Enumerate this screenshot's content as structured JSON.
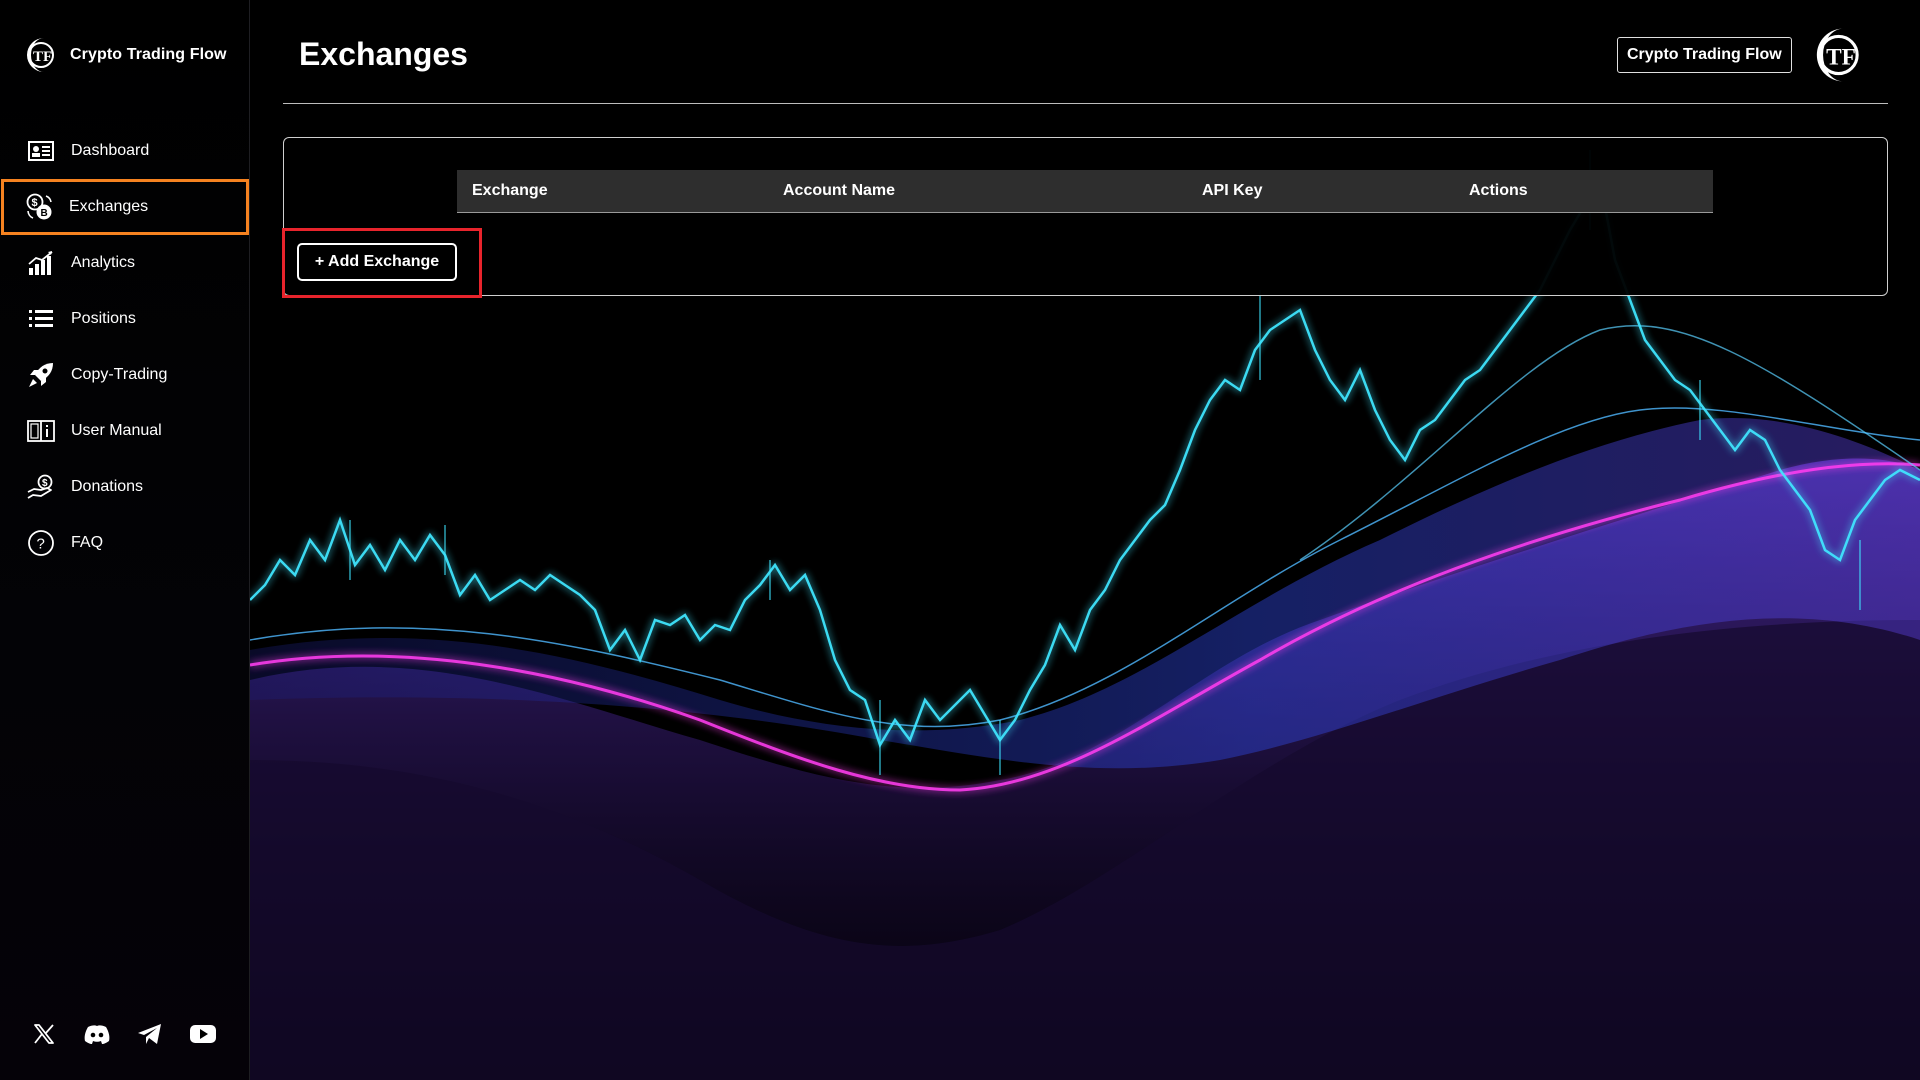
{
  "app": {
    "name": "Crypto Trading Flow"
  },
  "sidebar": {
    "items": [
      {
        "label": "Dashboard",
        "icon": "dashboard-icon"
      },
      {
        "label": "Exchanges",
        "icon": "exchange-coins-icon",
        "active": true
      },
      {
        "label": "Analytics",
        "icon": "analytics-icon"
      },
      {
        "label": "Positions",
        "icon": "list-icon"
      },
      {
        "label": "Copy-Trading",
        "icon": "rocket-icon"
      },
      {
        "label": "User Manual",
        "icon": "book-icon"
      },
      {
        "label": "Donations",
        "icon": "donation-icon"
      },
      {
        "label": "FAQ",
        "icon": "question-icon"
      }
    ],
    "socials": [
      "x-icon",
      "discord-icon",
      "telegram-icon",
      "youtube-icon"
    ]
  },
  "header": {
    "title": "Exchanges",
    "brand_button": "Crypto Trading Flow"
  },
  "table": {
    "columns": [
      "Exchange",
      "Account Name",
      "API Key",
      "Actions"
    ],
    "rows": []
  },
  "actions": {
    "add_exchange": "+ Add Exchange"
  },
  "colors": {
    "active_outline": "#f58220",
    "highlight_outline": "#e8242c",
    "chart_cyan": "#3fe6ff",
    "wave_blue": "#3a4cff",
    "wave_magenta": "#ff3cf0"
  }
}
